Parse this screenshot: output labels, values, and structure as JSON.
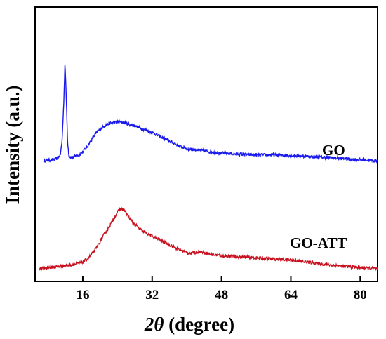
{
  "chart_data": {
    "type": "line",
    "xlabel_prefix": "2",
    "xlabel_theta": "θ",
    "xlabel_suffix": " (degree)",
    "ylabel": "Intensity (a.u.)",
    "xlim": [
      5,
      84
    ],
    "ylim": [
      0,
      1
    ],
    "xticks": [
      16,
      32,
      48,
      64,
      80
    ],
    "xtick_labels": [
      "16",
      "32",
      "48",
      "64",
      "80"
    ],
    "yticks_shown": false,
    "series": [
      {
        "name": "GO",
        "color": "#1a1aee",
        "x": [
          7,
          9,
          10,
          10.8,
          11.2,
          11.6,
          11.9,
          12.2,
          12.5,
          12.8,
          13.2,
          13.6,
          14,
          15,
          16,
          17,
          18,
          19,
          20,
          21,
          22,
          23,
          24,
          25,
          26,
          27,
          28,
          30,
          32,
          34,
          36,
          38,
          40,
          42,
          44,
          46,
          48,
          52,
          56,
          60,
          64,
          68,
          72,
          76,
          80,
          84
        ],
        "y": [
          0.495,
          0.5,
          0.505,
          0.52,
          0.58,
          0.75,
          0.95,
          0.78,
          0.58,
          0.52,
          0.51,
          0.51,
          0.515,
          0.52,
          0.535,
          0.56,
          0.59,
          0.62,
          0.64,
          0.655,
          0.665,
          0.67,
          0.672,
          0.672,
          0.668,
          0.66,
          0.655,
          0.64,
          0.625,
          0.605,
          0.585,
          0.565,
          0.55,
          0.545,
          0.54,
          0.535,
          0.53,
          0.525,
          0.522,
          0.522,
          0.52,
          0.515,
          0.51,
          0.505,
          0.5,
          0.495
        ]
      },
      {
        "name": "GO-ATT",
        "color": "#c8101e",
        "x": [
          6,
          8,
          10,
          12,
          14,
          16,
          17,
          18,
          19,
          20,
          21,
          22,
          23,
          24,
          24.8,
          25.5,
          26.2,
          27,
          28,
          29,
          30,
          31,
          32,
          34,
          36,
          38,
          40,
          41,
          42,
          43,
          44,
          46,
          48,
          52,
          56,
          60,
          64,
          68,
          72,
          76,
          80,
          84
        ],
        "y": [
          0.0,
          0.005,
          0.01,
          0.015,
          0.02,
          0.03,
          0.045,
          0.065,
          0.09,
          0.125,
          0.16,
          0.19,
          0.225,
          0.26,
          0.275,
          0.27,
          0.25,
          0.225,
          0.205,
          0.185,
          0.17,
          0.16,
          0.15,
          0.13,
          0.11,
          0.09,
          0.075,
          0.07,
          0.075,
          0.08,
          0.075,
          0.065,
          0.06,
          0.055,
          0.05,
          0.045,
          0.04,
          0.03,
          0.02,
          0.012,
          0.005,
          0.0
        ]
      }
    ]
  }
}
